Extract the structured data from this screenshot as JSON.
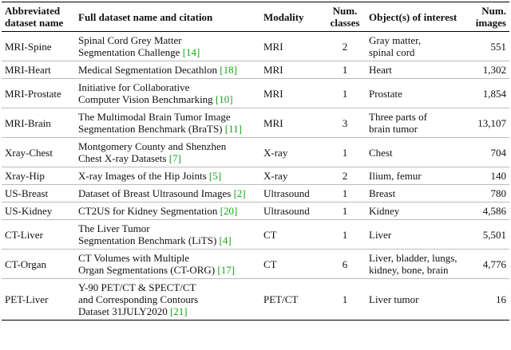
{
  "table": {
    "header": [
      [
        "Abbreviated",
        "dataset name"
      ],
      [
        "Full dataset name and citation"
      ],
      [
        "Modality"
      ],
      [
        "Num.",
        "classes"
      ],
      [
        "Object(s) of interest"
      ],
      [
        "Num.",
        "images"
      ]
    ],
    "rows": [
      {
        "name": "MRI-Spine",
        "full": [
          "Spinal Cord Grey Matter",
          "Segmentation Challenge"
        ],
        "cite": "[14]",
        "modality": "MRI",
        "classes": "2",
        "objects": [
          "Gray matter,",
          "spinal cord"
        ],
        "images": "551"
      },
      {
        "name": "MRI-Heart",
        "full": [
          "Medical Segmentation Decathlon"
        ],
        "cite": "[18]",
        "modality": "MRI",
        "classes": "1",
        "objects": [
          "Heart"
        ],
        "images": "1,302"
      },
      {
        "name": "MRI-Prostate",
        "full": [
          "Initiative for Collaborative",
          "Computer Vision Benchmarking"
        ],
        "cite": "[10]",
        "modality": "MRI",
        "classes": "1",
        "objects": [
          "Prostate"
        ],
        "images": "1,854"
      },
      {
        "name": "MRI-Brain",
        "full": [
          "The Multimodal Brain Tumor Image",
          "Segmentation Benchmark (BraTS)"
        ],
        "cite": "[11]",
        "modality": "MRI",
        "classes": "3",
        "objects": [
          "Three parts of",
          "brain tumor"
        ],
        "images": "13,107"
      },
      {
        "name": "Xray-Chest",
        "full": [
          "Montgomery County and Shenzhen",
          "Chest X-ray Datasets"
        ],
        "cite": "[7]",
        "modality": "X-ray",
        "classes": "1",
        "objects": [
          "Chest"
        ],
        "images": "704"
      },
      {
        "name": "Xray-Hip",
        "full": [
          "X-ray Images of the Hip Joints"
        ],
        "cite": "[5]",
        "modality": "X-ray",
        "classes": "2",
        "objects": [
          "Ilium, femur"
        ],
        "images": "140"
      },
      {
        "name": "US-Breast",
        "full": [
          "Dataset of Breast Ultrasound Images"
        ],
        "cite": "[2]",
        "modality": "Ultrasound",
        "classes": "1",
        "objects": [
          "Breast"
        ],
        "images": "780"
      },
      {
        "name": "US-Kidney",
        "full": [
          "CT2US for Kidney Segmentation"
        ],
        "cite": "[20]",
        "modality": "Ultrasound",
        "classes": "1",
        "objects": [
          "Kidney"
        ],
        "images": "4,586"
      },
      {
        "name": "CT-Liver",
        "full": [
          "The Liver Tumor",
          "Segmentation Benchmark (LiTS)"
        ],
        "cite": "[4]",
        "modality": "CT",
        "classes": "1",
        "objects": [
          "Liver"
        ],
        "images": "5,501"
      },
      {
        "name": "CT-Organ",
        "full": [
          "CT Volumes with Multiple",
          "Organ Segmentations (CT-ORG)"
        ],
        "cite": "[17]",
        "modality": "CT",
        "classes": "6",
        "objects": [
          "Liver, bladder, lungs,",
          "kidney, bone, brain"
        ],
        "images": "4,776"
      },
      {
        "name": "PET-Liver",
        "full": [
          "Y-90 PET/CT & SPECT/CT",
          "and Corresponding Contours",
          "Dataset 31JULY2020"
        ],
        "cite": "[21]",
        "modality": "PET/CT",
        "classes": "1",
        "objects": [
          "Liver tumor"
        ],
        "images": "16"
      }
    ]
  }
}
